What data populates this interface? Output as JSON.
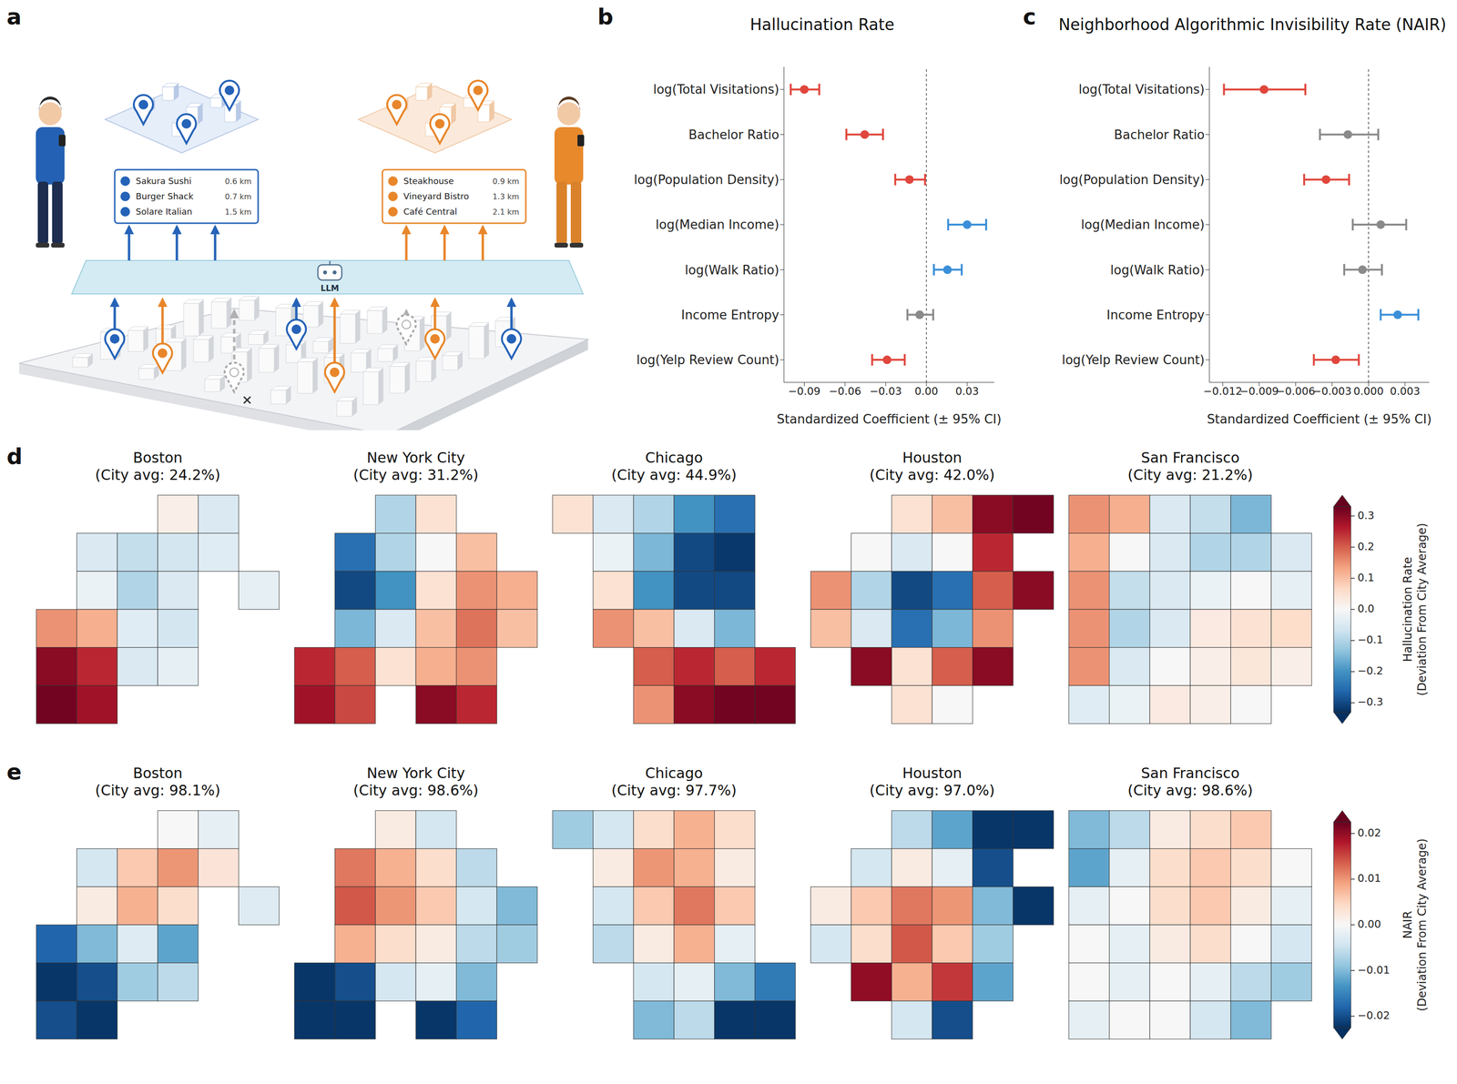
{
  "diagram": {
    "panel": "a",
    "llm_label": "LLM",
    "lists": [
      {
        "color": "#2563b8",
        "items": [
          {
            "name": "Sakura Sushi",
            "distance": "0.6 km"
          },
          {
            "name": "Burger Shack",
            "distance": "0.7 km"
          },
          {
            "name": "Solare Italian",
            "distance": "1.5 km"
          }
        ]
      },
      {
        "color": "#e8862a",
        "items": [
          {
            "name": "Steakhouse",
            "distance": "0.9 km"
          },
          {
            "name": "Vineyard Bistro",
            "distance": "1.3 km"
          },
          {
            "name": "Café Central",
            "distance": "2.1 km"
          }
        ]
      }
    ]
  },
  "chart_data": [
    {
      "panel": "b",
      "type": "scatter",
      "orientation": "horizontal",
      "marker": "circle",
      "title": "Hallucination Rate",
      "xlabel": "Standardized Coefficient (± 95% CI)",
      "categories": [
        "log(Total Visitations)",
        "Bachelor Ratio",
        "log(Population Density)",
        "log(Median Income)",
        "log(Walk Ratio)",
        "Income Entropy",
        "log(Yelp Review Count)"
      ],
      "values": [
        -0.09,
        -0.0455,
        -0.0125,
        0.03,
        0.0155,
        -0.005,
        -0.029
      ],
      "ci_low": [
        -0.1,
        -0.059,
        -0.023,
        0.016,
        0.0055,
        -0.014,
        -0.04
      ],
      "ci_high": [
        -0.079,
        -0.032,
        -0.001,
        0.044,
        0.026,
        0.005,
        -0.016
      ],
      "colors": [
        "#e0463c",
        "#e0463c",
        "#e0463c",
        "#3b8fd8",
        "#3b8fd8",
        "#8a8a8a",
        "#e0463c"
      ],
      "xlim": [
        -0.105,
        0.05
      ],
      "xticks": [
        {
          "value": -0.09,
          "label": "−0.09"
        },
        {
          "value": -0.06,
          "label": "−0.06"
        },
        {
          "value": -0.03,
          "label": "−0.03"
        },
        {
          "value": 0,
          "label": "0.00"
        },
        0.03
      ],
      "reference_line": 0
    },
    {
      "panel": "c",
      "type": "scatter",
      "orientation": "horizontal",
      "marker": "circle",
      "title": "Neighborhood Algorithmic Invisibility Rate (NAIR)",
      "xlabel": "Standardized Coefficient (± 95% CI)",
      "categories": [
        "log(Total Visitations)",
        "Bachelor Ratio",
        "log(Population Density)",
        "log(Median Income)",
        "log(Walk Ratio)",
        "Income Entropy",
        "log(Yelp Review Count)"
      ],
      "values": [
        -0.0086,
        -0.0017,
        -0.0035,
        0.001,
        -0.0005,
        0.0024,
        -0.0027
      ],
      "ci_low": [
        -0.0119,
        -0.004,
        -0.0053,
        -0.0013,
        -0.002,
        0.001,
        -0.0045
      ],
      "ci_high": [
        -0.0052,
        0.0008,
        -0.0016,
        0.0031,
        0.0011,
        0.0041,
        -0.0008
      ],
      "colors": [
        "#e0463c",
        "#8a8a8a",
        "#e0463c",
        "#8a8a8a",
        "#8a8a8a",
        "#3b8fd8",
        "#e0463c"
      ],
      "xlim": [
        -0.0131,
        0.005
      ],
      "xticks": [
        {
          "value": -0.012,
          "label": "−0.012"
        },
        {
          "value": -0.009,
          "label": "−0.009"
        },
        {
          "value": -0.006,
          "label": "−0.006"
        },
        {
          "value": -0.003,
          "label": "−0.003"
        },
        {
          "value": 0,
          "label": "0.000"
        },
        0.003
      ],
      "reference_line": 0
    },
    {
      "panel": "d",
      "type": "map",
      "tick_labels": false,
      "colorbar": {
        "label": "Hallucination Rate (Deviation From City Average)",
        "range": [
          -0.33,
          0.33
        ],
        "ticks": [
          {
            "value": -0.3,
            "label": "−0.3"
          },
          {
            "value": -0.2,
            "label": "−0.2"
          },
          {
            "value": -0.1,
            "label": "−0.1"
          },
          {
            "value": 0,
            "label": "0.0"
          },
          0.1,
          0.2,
          0.3
        ]
      },
      "cities": [
        {
          "title": "Boston",
          "subtitle": "(City avg: 24.2%)",
          "cells": [
            [
              null,
              null,
              null,
              0.02,
              -0.05,
              null
            ],
            [
              null,
              -0.05,
              -0.08,
              -0.06,
              -0.04,
              null
            ],
            [
              null,
              -0.02,
              -0.1,
              -0.05,
              null,
              -0.03
            ],
            [
              0.15,
              0.12,
              -0.04,
              -0.06,
              null,
              null
            ],
            [
              0.3,
              0.25,
              -0.05,
              -0.03,
              null,
              null
            ],
            [
              0.32,
              0.28,
              null,
              null,
              null,
              null
            ]
          ]
        },
        {
          "title": "New York City",
          "subtitle": "(City avg: 31.2%)",
          "cells": [
            [
              null,
              null,
              -0.1,
              0.05,
              null,
              null
            ],
            [
              null,
              -0.25,
              -0.1,
              0.0,
              0.1,
              null
            ],
            [
              null,
              -0.3,
              -0.2,
              0.05,
              0.15,
              0.12
            ],
            [
              null,
              -0.15,
              -0.05,
              0.1,
              0.18,
              0.1
            ],
            [
              0.25,
              0.2,
              0.05,
              0.12,
              0.15,
              null
            ],
            [
              0.28,
              0.22,
              null,
              0.3,
              0.25,
              null
            ]
          ]
        },
        {
          "title": "Chicago",
          "subtitle": "(City avg: 44.9%)",
          "cells": [
            [
              0.05,
              -0.05,
              -0.1,
              -0.2,
              -0.25,
              null
            ],
            [
              null,
              -0.02,
              -0.15,
              -0.3,
              -0.32,
              null
            ],
            [
              null,
              0.05,
              -0.2,
              -0.3,
              -0.3,
              null
            ],
            [
              null,
              0.15,
              0.1,
              -0.05,
              -0.15,
              null
            ],
            [
              null,
              null,
              0.2,
              0.25,
              0.2,
              0.25
            ],
            [
              null,
              null,
              0.15,
              0.3,
              0.32,
              0.32
            ]
          ]
        },
        {
          "title": "Houston",
          "subtitle": "(City avg: 42.0%)",
          "cells": [
            [
              null,
              null,
              0.05,
              0.1,
              0.3,
              0.32
            ],
            [
              null,
              0.0,
              -0.05,
              0.0,
              0.25,
              null
            ],
            [
              0.15,
              -0.1,
              -0.3,
              -0.25,
              0.2,
              0.3
            ],
            [
              0.1,
              -0.05,
              -0.25,
              -0.15,
              0.15,
              null
            ],
            [
              null,
              0.3,
              0.05,
              0.2,
              0.3,
              null
            ],
            [
              null,
              null,
              0.05,
              0.0,
              null,
              null
            ]
          ]
        },
        {
          "title": "San Francisco",
          "subtitle": "(City avg: 21.2%)",
          "cells": [
            [
              0.15,
              0.12,
              -0.05,
              -0.08,
              -0.15,
              null
            ],
            [
              0.12,
              0.0,
              -0.05,
              -0.1,
              -0.1,
              -0.05
            ],
            [
              0.15,
              -0.08,
              -0.05,
              -0.02,
              0.0,
              -0.03
            ],
            [
              0.15,
              -0.1,
              -0.05,
              0.03,
              0.05,
              0.06
            ],
            [
              0.15,
              -0.05,
              0.0,
              0.02,
              0.04,
              0.02
            ],
            [
              -0.04,
              -0.02,
              0.03,
              0.02,
              0.0,
              null
            ]
          ]
        }
      ]
    },
    {
      "panel": "e",
      "type": "map",
      "tick_labels": false,
      "colorbar": {
        "label": "NAIR (Deviation From City Average)",
        "range": [
          -0.0225,
          0.0225
        ],
        "ticks": [
          {
            "value": -0.02,
            "label": "−0.02"
          },
          {
            "value": -0.01,
            "label": "−0.01"
          },
          {
            "value": 0,
            "label": "0.00"
          },
          0.01,
          0.02
        ]
      },
      "cities": [
        {
          "title": "Boston",
          "subtitle": "(City avg: 98.1%)",
          "cells": [
            [
              null,
              null,
              null,
              0.0,
              -0.002,
              null
            ],
            [
              null,
              -0.004,
              0.006,
              0.01,
              0.003,
              null
            ],
            [
              null,
              0.002,
              0.008,
              0.004,
              null,
              -0.003
            ],
            [
              -0.018,
              -0.01,
              -0.003,
              -0.012,
              null,
              null
            ],
            [
              -0.022,
              -0.02,
              -0.008,
              -0.006,
              null,
              null
            ],
            [
              -0.02,
              -0.022,
              null,
              null,
              null,
              null
            ]
          ]
        },
        {
          "title": "New York City",
          "subtitle": "(City avg: 98.6%)",
          "cells": [
            [
              null,
              null,
              0.002,
              -0.004,
              null,
              null
            ],
            [
              null,
              0.012,
              0.008,
              0.004,
              -0.006,
              null
            ],
            [
              null,
              0.014,
              0.01,
              0.006,
              -0.004,
              -0.01
            ],
            [
              null,
              0.008,
              0.004,
              0.002,
              -0.006,
              -0.008
            ],
            [
              -0.022,
              -0.02,
              -0.004,
              -0.002,
              -0.01,
              null
            ],
            [
              -0.022,
              -0.022,
              null,
              -0.022,
              -0.018,
              null
            ]
          ]
        },
        {
          "title": "Chicago",
          "subtitle": "(City avg: 97.7%)",
          "cells": [
            [
              -0.008,
              -0.004,
              0.004,
              0.008,
              0.004,
              null
            ],
            [
              null,
              0.002,
              0.01,
              0.008,
              0.002,
              null
            ],
            [
              null,
              -0.004,
              0.006,
              0.012,
              0.006,
              null
            ],
            [
              null,
              -0.006,
              0.002,
              0.008,
              -0.002,
              null
            ],
            [
              null,
              null,
              -0.004,
              -0.002,
              -0.01,
              -0.016
            ],
            [
              null,
              null,
              -0.01,
              -0.006,
              -0.022,
              -0.022
            ]
          ]
        },
        {
          "title": "Houston",
          "subtitle": "(City avg: 97.0%)",
          "cells": [
            [
              null,
              null,
              -0.006,
              -0.012,
              -0.022,
              -0.022
            ],
            [
              null,
              -0.004,
              0.002,
              -0.002,
              -0.02,
              null
            ],
            [
              0.002,
              0.006,
              0.012,
              0.01,
              -0.01,
              -0.022
            ],
            [
              -0.004,
              0.004,
              0.014,
              0.006,
              -0.008,
              null
            ],
            [
              null,
              0.02,
              0.008,
              0.016,
              -0.012,
              null
            ],
            [
              null,
              null,
              -0.004,
              -0.02,
              null,
              null
            ]
          ]
        },
        {
          "title": "San Francisco",
          "subtitle": "(City avg: 98.6%)",
          "cells": [
            [
              -0.01,
              -0.006,
              0.002,
              0.004,
              0.006,
              null
            ],
            [
              -0.012,
              -0.002,
              0.004,
              0.006,
              0.004,
              0.0
            ],
            [
              -0.002,
              0.0,
              0.004,
              0.006,
              0.002,
              -0.002
            ],
            [
              0.0,
              -0.002,
              0.002,
              0.004,
              0.0,
              -0.004
            ],
            [
              0.0,
              -0.002,
              0.0,
              -0.002,
              -0.006,
              -0.008
            ],
            [
              -0.002,
              0.0,
              0.0,
              -0.004,
              -0.01,
              null
            ]
          ]
        }
      ]
    }
  ]
}
